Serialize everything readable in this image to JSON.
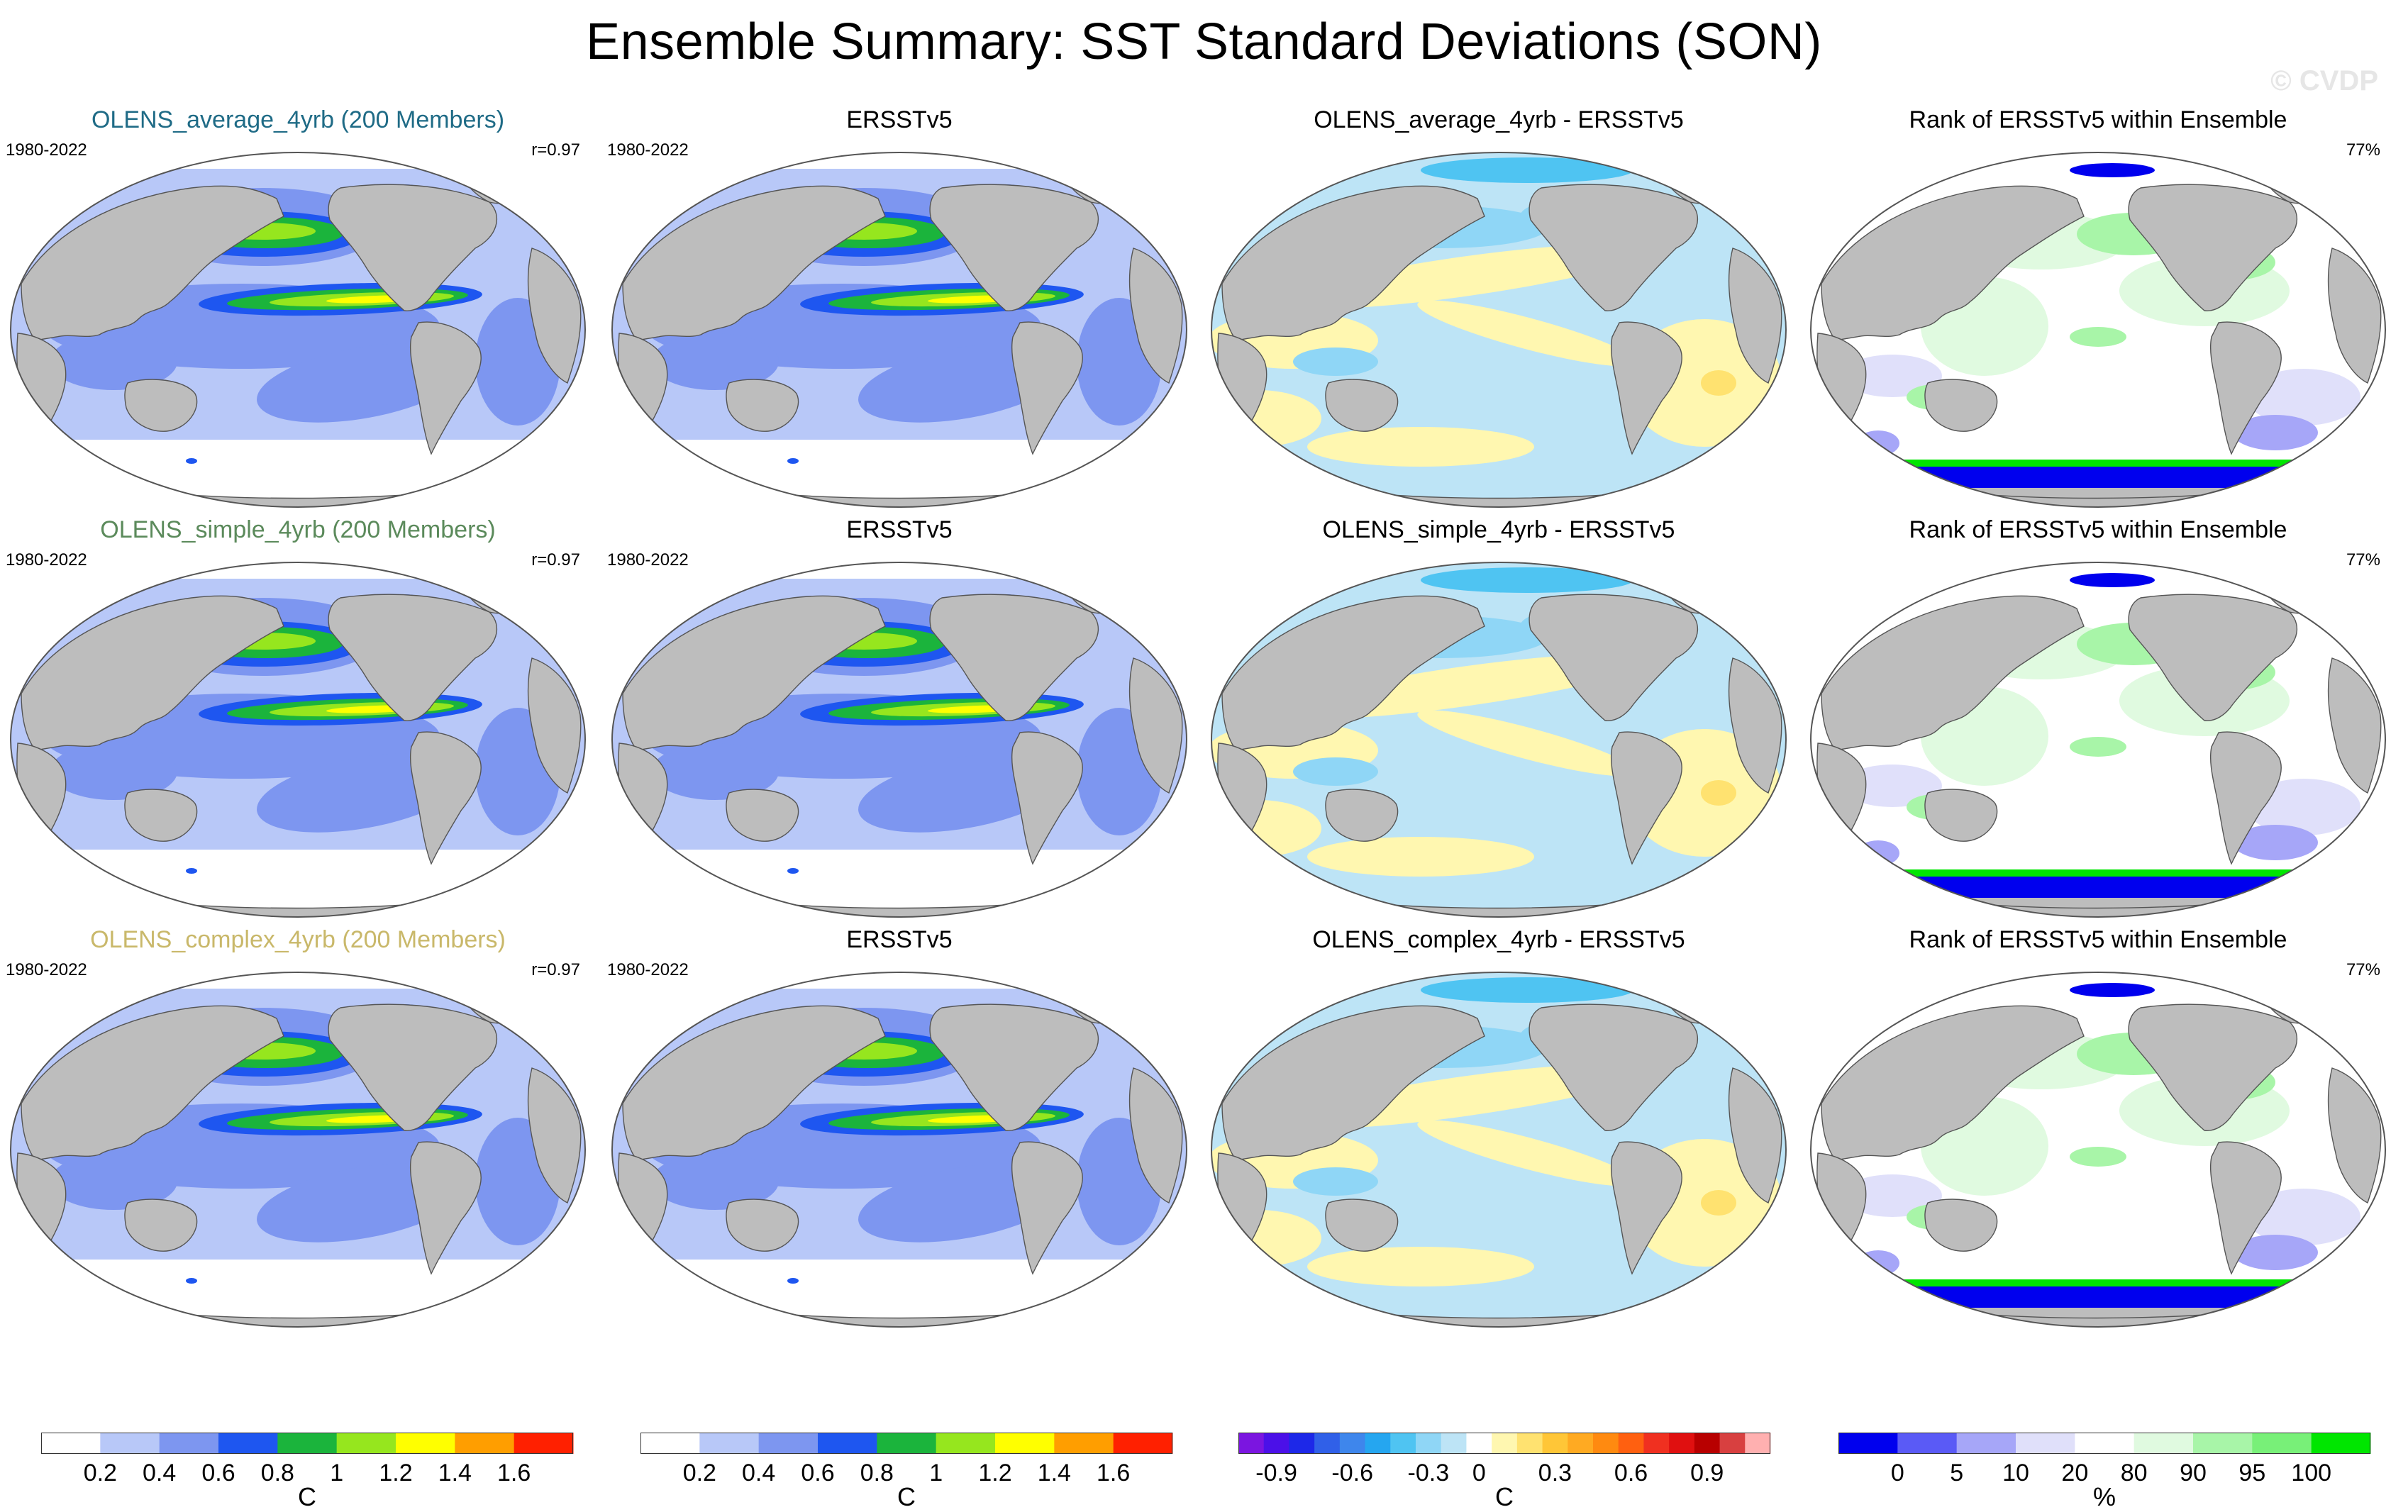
{
  "title": "Ensemble Summary: SST Standard Deviations (SON)",
  "watermark": "© CVDP",
  "colors": {
    "land": "#bdbdbd",
    "std_scale": [
      "#ffffff",
      "#b8c8f8",
      "#7d96f0",
      "#1e56f0",
      "#1bb43c",
      "#96e61e",
      "#ffff00",
      "#ff9e00",
      "#ff2000"
    ],
    "diff_scale": [
      "#7b15e0",
      "#4b10e8",
      "#1d28e8",
      "#3060e8",
      "#3e86ec",
      "#25a6f0",
      "#4fc4f2",
      "#8fd6f6",
      "#bde4f6",
      "#ffffff",
      "#fff7b0",
      "#ffe270",
      "#ffc637",
      "#ffaa22",
      "#ff8a10",
      "#ff6010",
      "#f03020",
      "#e01010",
      "#b80000",
      "#d84040",
      "#ffb0b0"
    ],
    "rank_scale": [
      "#0000ee",
      "#5a5af6",
      "#a6a6f8",
      "#e0e0fa",
      "#ffffff",
      "#e0fae0",
      "#a8f5a8",
      "#78f078",
      "#00e600"
    ]
  },
  "rows": [
    {
      "model_title": "OLENS_average_4yrb (200 Members)",
      "model_title_color": "#1f6b86",
      "period": "1980-2022",
      "pattern_corr": "r=0.97",
      "obs_title": "ERSSTv5",
      "obs_period": "1980-2022",
      "diff_title": "OLENS_average_4yrb - ERSSTv5",
      "rank_title": "Rank of ERSSTv5 within Ensemble",
      "rank_pct": "77%"
    },
    {
      "model_title": "OLENS_simple_4yrb (200 Members)",
      "model_title_color": "#5b8a5b",
      "period": "1980-2022",
      "pattern_corr": "r=0.97",
      "obs_title": "ERSSTv5",
      "obs_period": "1980-2022",
      "diff_title": "OLENS_simple_4yrb - ERSSTv5",
      "rank_title": "Rank of ERSSTv5 within Ensemble",
      "rank_pct": "77%"
    },
    {
      "model_title": "OLENS_complex_4yrb (200 Members)",
      "model_title_color": "#c9b86a",
      "period": "1980-2022",
      "pattern_corr": "r=0.97",
      "obs_title": "ERSSTv5",
      "obs_period": "1980-2022",
      "diff_title": "OLENS_complex_4yrb - ERSSTv5",
      "rank_title": "Rank of ERSSTv5 within Ensemble",
      "rank_pct": "77%"
    }
  ],
  "colorbars": {
    "std": {
      "ticks": [
        "0.2",
        "0.4",
        "0.6",
        "0.8",
        "1",
        "1.2",
        "1.4",
        "1.6"
      ],
      "unit": "C"
    },
    "diff": {
      "ticks": [
        "-0.9",
        "-0.6",
        "-0.3",
        "0",
        "0.3",
        "0.6",
        "0.9"
      ],
      "unit": "C"
    },
    "rank": {
      "ticks": [
        "0",
        "5",
        "10",
        "20",
        "80",
        "90",
        "95",
        "100"
      ],
      "unit": "%"
    }
  }
}
